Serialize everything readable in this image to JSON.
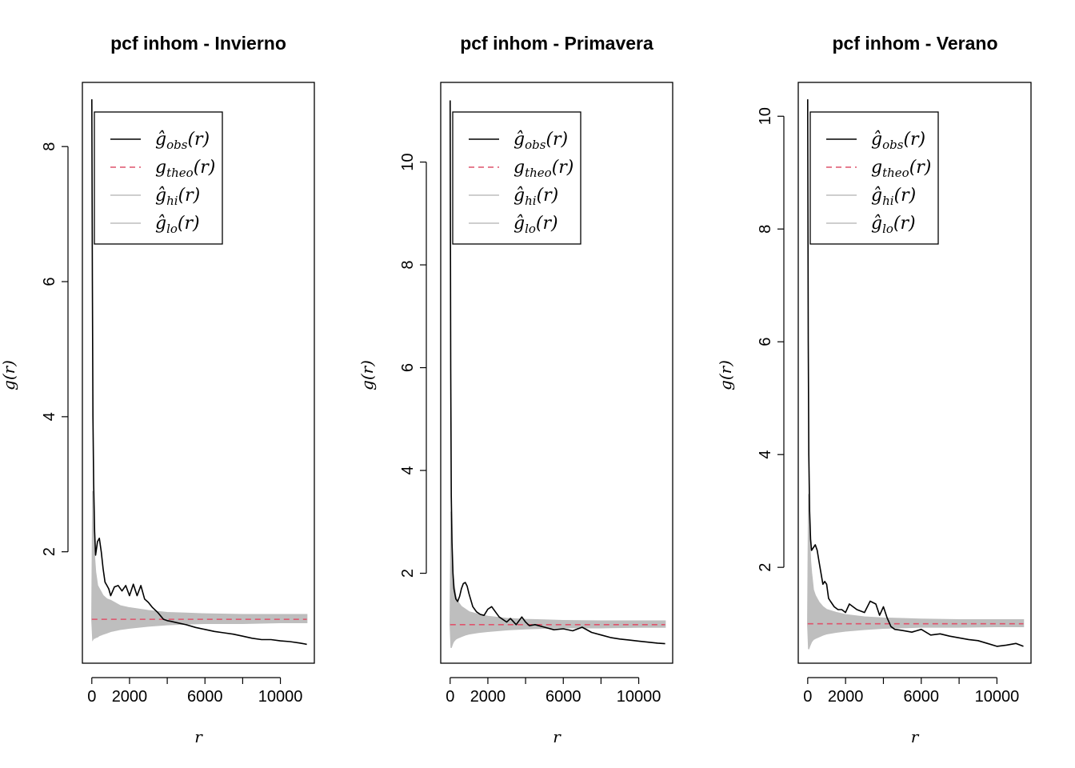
{
  "chart_data": [
    {
      "type": "line",
      "title": "pcf inhom - Invierno",
      "xlabel": "r",
      "ylabel": "g(r)",
      "xlim": [
        -500,
        11800
      ],
      "ylim": [
        0.35,
        8.95
      ],
      "xticks": [
        0,
        2000,
        6000,
        10000
      ],
      "xtick_marks": [
        0,
        2000,
        4000,
        6000,
        8000,
        10000
      ],
      "yticks": [
        2,
        4,
        6,
        8
      ],
      "legend": {
        "placement": "top-left",
        "entries": [
          {
            "main": "ĝ",
            "sub": "obs",
            "arg": "(r)",
            "color": "#000000",
            "style": "solid"
          },
          {
            "main": "g",
            "sub": "theo",
            "arg": "(r)",
            "color": "#DF536B",
            "style": "dashed"
          },
          {
            "main": "ĝ",
            "sub": "hi",
            "arg": "(r)",
            "color": "#BEBEBE",
            "style": "solid"
          },
          {
            "main": "ĝ",
            "sub": "lo",
            "arg": "(r)",
            "color": "#BEBEBE",
            "style": "solid"
          }
        ]
      },
      "theo": 1.0,
      "envelope": {
        "x": [
          0,
          50,
          100,
          150,
          200,
          300,
          400,
          600,
          800,
          1000,
          1500,
          2000,
          3000,
          4000,
          5000,
          6000,
          8000,
          10000,
          11400
        ],
        "hi": [
          1.0,
          2.9,
          2.2,
          1.9,
          1.7,
          1.5,
          1.45,
          1.35,
          1.3,
          1.28,
          1.2,
          1.17,
          1.13,
          1.1,
          1.09,
          1.08,
          1.07,
          1.07,
          1.07
        ],
        "lo": [
          1.0,
          0.7,
          0.72,
          0.72,
          0.73,
          0.74,
          0.76,
          0.78,
          0.8,
          0.82,
          0.85,
          0.87,
          0.9,
          0.92,
          0.93,
          0.94,
          0.94,
          0.95,
          0.95
        ]
      },
      "obs": {
        "x": [
          0,
          30,
          60,
          100,
          150,
          200,
          300,
          400,
          500,
          600,
          700,
          800,
          900,
          1000,
          1200,
          1400,
          1600,
          1800,
          2000,
          2200,
          2400,
          2600,
          2800,
          3000,
          3200,
          3500,
          3800,
          4000,
          4200,
          4500,
          5000,
          5500,
          6000,
          6500,
          7000,
          7500,
          8000,
          8500,
          9000,
          9500,
          10000,
          10500,
          11000,
          11400
        ],
        "y": [
          8.7,
          6.0,
          4.0,
          3.0,
          2.3,
          1.95,
          2.15,
          2.2,
          2.0,
          1.75,
          1.55,
          1.5,
          1.45,
          1.35,
          1.48,
          1.5,
          1.42,
          1.5,
          1.35,
          1.52,
          1.35,
          1.5,
          1.3,
          1.25,
          1.18,
          1.1,
          1.0,
          0.98,
          0.97,
          0.95,
          0.92,
          0.88,
          0.85,
          0.82,
          0.8,
          0.78,
          0.75,
          0.72,
          0.7,
          0.7,
          0.68,
          0.67,
          0.65,
          0.63
        ]
      }
    },
    {
      "type": "line",
      "title": "pcf inhom - Primavera",
      "xlabel": "r",
      "ylabel": "g(r)",
      "xlim": [
        -500,
        11800
      ],
      "ylim": [
        0.25,
        11.55
      ],
      "xticks": [
        0,
        2000,
        6000,
        10000
      ],
      "xtick_marks": [
        0,
        2000,
        4000,
        6000,
        8000,
        10000
      ],
      "yticks": [
        2,
        4,
        6,
        8,
        10
      ],
      "legend": {
        "placement": "top-left",
        "entries": [
          {
            "main": "ĝ",
            "sub": "obs",
            "arg": "(r)",
            "color": "#000000",
            "style": "solid"
          },
          {
            "main": "g",
            "sub": "theo",
            "arg": "(r)",
            "color": "#DF536B",
            "style": "dashed"
          },
          {
            "main": "ĝ",
            "sub": "hi",
            "arg": "(r)",
            "color": "#BEBEBE",
            "style": "solid"
          },
          {
            "main": "ĝ",
            "sub": "lo",
            "arg": "(r)",
            "color": "#BEBEBE",
            "style": "solid"
          }
        ]
      },
      "theo": 1.0,
      "envelope": {
        "x": [
          0,
          50,
          100,
          150,
          200,
          300,
          400,
          600,
          800,
          1000,
          1500,
          2000,
          3000,
          4000,
          5000,
          6000,
          8000,
          10000,
          11400
        ],
        "hi": [
          1.0,
          3.2,
          2.4,
          2.0,
          1.8,
          1.55,
          1.45,
          1.35,
          1.3,
          1.25,
          1.2,
          1.16,
          1.12,
          1.1,
          1.09,
          1.08,
          1.07,
          1.07,
          1.07
        ],
        "lo": [
          1.0,
          0.55,
          0.6,
          0.65,
          0.68,
          0.72,
          0.74,
          0.77,
          0.8,
          0.82,
          0.85,
          0.87,
          0.9,
          0.92,
          0.93,
          0.94,
          0.94,
          0.95,
          0.95
        ]
      },
      "obs": {
        "x": [
          0,
          30,
          60,
          100,
          150,
          200,
          300,
          400,
          500,
          600,
          700,
          800,
          900,
          1000,
          1200,
          1400,
          1600,
          1800,
          2000,
          2200,
          2400,
          2600,
          3000,
          3200,
          3500,
          3800,
          4000,
          4200,
          4500,
          5000,
          5500,
          6000,
          6500,
          7000,
          7500,
          8000,
          8500,
          9000,
          9500,
          10000,
          10500,
          11000,
          11400
        ],
        "y": [
          11.2,
          6.0,
          3.5,
          2.6,
          2.0,
          1.7,
          1.5,
          1.45,
          1.55,
          1.7,
          1.8,
          1.82,
          1.75,
          1.6,
          1.35,
          1.25,
          1.2,
          1.18,
          1.3,
          1.35,
          1.25,
          1.15,
          1.05,
          1.12,
          1.0,
          1.15,
          1.05,
          0.98,
          1.0,
          0.95,
          0.9,
          0.92,
          0.88,
          0.95,
          0.85,
          0.8,
          0.75,
          0.72,
          0.7,
          0.68,
          0.66,
          0.64,
          0.63
        ]
      }
    },
    {
      "type": "line",
      "title": "pcf inhom - Verano",
      "xlabel": "r",
      "ylabel": "g(r)",
      "xlim": [
        -500,
        11800
      ],
      "ylim": [
        0.3,
        10.6
      ],
      "xticks": [
        0,
        2000,
        6000,
        10000
      ],
      "xtick_marks": [
        0,
        2000,
        4000,
        6000,
        8000,
        10000
      ],
      "yticks": [
        2,
        4,
        6,
        8,
        10
      ],
      "legend": {
        "placement": "top-left",
        "entries": [
          {
            "main": "ĝ",
            "sub": "obs",
            "arg": "(r)",
            "color": "#000000",
            "style": "solid"
          },
          {
            "main": "g",
            "sub": "theo",
            "arg": "(r)",
            "color": "#DF536B",
            "style": "dashed"
          },
          {
            "main": "ĝ",
            "sub": "hi",
            "arg": "(r)",
            "color": "#BEBEBE",
            "style": "solid"
          },
          {
            "main": "ĝ",
            "sub": "lo",
            "arg": "(r)",
            "color": "#BEBEBE",
            "style": "solid"
          }
        ]
      },
      "theo": 1.0,
      "envelope": {
        "x": [
          0,
          50,
          100,
          150,
          200,
          300,
          400,
          600,
          800,
          1000,
          1500,
          2000,
          3000,
          4000,
          5000,
          6000,
          8000,
          10000,
          11400
        ],
        "hi": [
          1.0,
          3.3,
          2.5,
          2.1,
          1.9,
          1.6,
          1.5,
          1.38,
          1.3,
          1.25,
          1.2,
          1.16,
          1.12,
          1.1,
          1.09,
          1.08,
          1.07,
          1.07,
          1.07
        ],
        "lo": [
          1.0,
          0.55,
          0.6,
          0.64,
          0.68,
          0.72,
          0.74,
          0.77,
          0.8,
          0.82,
          0.85,
          0.87,
          0.9,
          0.92,
          0.93,
          0.94,
          0.94,
          0.95,
          0.95
        ]
      },
      "obs": {
        "x": [
          0,
          30,
          60,
          100,
          150,
          200,
          300,
          400,
          500,
          600,
          700,
          800,
          900,
          1000,
          1100,
          1200,
          1400,
          1600,
          1800,
          2000,
          2200,
          2400,
          2600,
          3000,
          3300,
          3600,
          3800,
          4000,
          4200,
          4400,
          4600,
          5000,
          5500,
          6000,
          6500,
          7000,
          7500,
          8000,
          8500,
          9000,
          9500,
          10000,
          10500,
          11000,
          11400
        ],
        "y": [
          10.3,
          6.0,
          4.0,
          3.0,
          2.5,
          2.3,
          2.35,
          2.4,
          2.3,
          2.1,
          1.9,
          1.7,
          1.75,
          1.7,
          1.45,
          1.4,
          1.3,
          1.25,
          1.25,
          1.2,
          1.35,
          1.3,
          1.25,
          1.2,
          1.4,
          1.35,
          1.15,
          1.3,
          1.1,
          0.95,
          0.9,
          0.88,
          0.85,
          0.9,
          0.8,
          0.82,
          0.78,
          0.75,
          0.72,
          0.7,
          0.65,
          0.6,
          0.62,
          0.65,
          0.6
        ]
      }
    }
  ]
}
